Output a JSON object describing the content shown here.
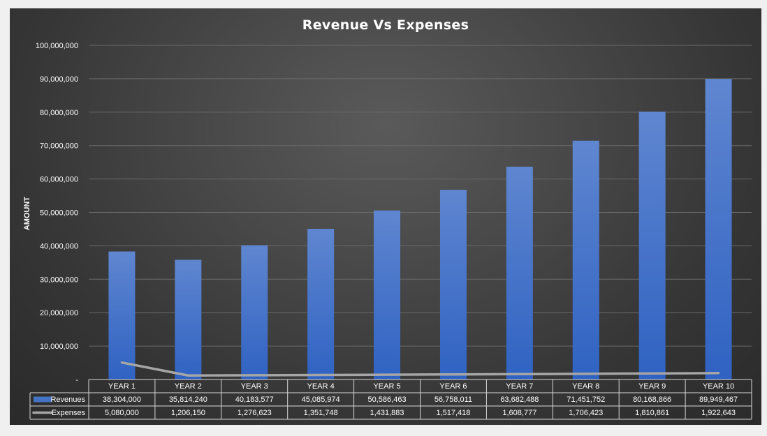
{
  "chart_data": {
    "type": "bar",
    "title": "Revenue Vs Expenses",
    "ylabel": "AMOUNT",
    "xlabel": "",
    "ylim": [
      0,
      100000000
    ],
    "yticks": [
      0,
      10000000,
      20000000,
      30000000,
      40000000,
      50000000,
      60000000,
      70000000,
      80000000,
      90000000,
      100000000
    ],
    "ytick_labels": [
      "-",
      "10,000,000",
      "20,000,000",
      "30,000,000",
      "40,000,000",
      "50,000,000",
      "60,000,000",
      "70,000,000",
      "80,000,000",
      "90,000,000",
      "100,000,000"
    ],
    "grid": true,
    "legend": "data-table",
    "categories": [
      "YEAR 1",
      "YEAR 2",
      "YEAR 3",
      "YEAR 4",
      "YEAR 5",
      "YEAR 6",
      "YEAR 7",
      "YEAR 8",
      "YEAR 9",
      "YEAR 10"
    ],
    "series": [
      {
        "name": "Revenues",
        "kind": "bar",
        "color": "#4472c4",
        "values": [
          38304000,
          35814240,
          40183577,
          45085974,
          50586463,
          56758011,
          63682488,
          71451752,
          80168866,
          89949467
        ],
        "labels": [
          "38,304,000",
          "35,814,240",
          "40,183,577",
          "45,085,974",
          "50,586,463",
          "56,758,011",
          "63,682,488",
          "71,451,752",
          "80,168,866",
          "89,949,467"
        ]
      },
      {
        "name": "Expenses",
        "kind": "line",
        "color": "#a6a6a6",
        "values": [
          5080000,
          1206150,
          1276623,
          1351748,
          1431883,
          1517418,
          1608777,
          1706423,
          1810861,
          1922643
        ],
        "labels": [
          "5,080,000",
          "1,206,150",
          "1,276,623",
          "1,351,748",
          "1,431,883",
          "1,517,418",
          "1,608,777",
          "1,706,423",
          "1,810,861",
          "1,922,643"
        ]
      }
    ]
  }
}
